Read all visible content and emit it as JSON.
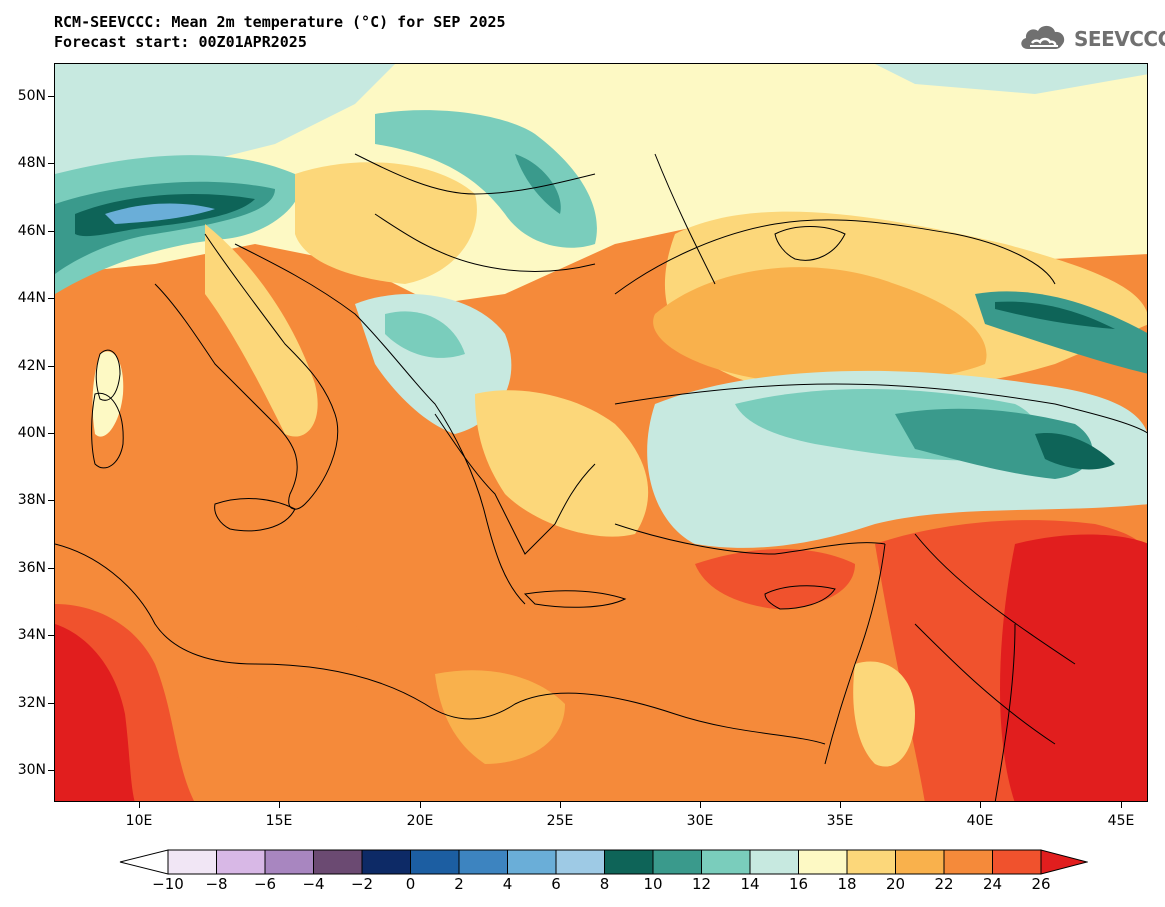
{
  "title": {
    "line1": "RCM-SEEVCCC: Mean 2m temperature (°C) for SEP 2025",
    "line2": "Forecast start: 00Z01APR2025"
  },
  "logo": {
    "text": "SEEVCCC",
    "icon": "cloud-icon",
    "color": "#707070"
  },
  "axes": {
    "lat_labels": [
      "50N",
      "48N",
      "46N",
      "44N",
      "42N",
      "40N",
      "38N",
      "36N",
      "34N",
      "32N",
      "30N"
    ],
    "lon_labels": [
      "10E",
      "15E",
      "20E",
      "25E",
      "30E",
      "35E",
      "40E",
      "45E"
    ],
    "lat_range": [
      29,
      51
    ],
    "lon_range": [
      7,
      46
    ]
  },
  "colorbar": {
    "labels": [
      "−10",
      "−8",
      "−6",
      "−4",
      "−2",
      "0",
      "2",
      "4",
      "6",
      "8",
      "10",
      "12",
      "14",
      "16",
      "18",
      "20",
      "22",
      "24",
      "26"
    ],
    "under_color": "#ffffff",
    "over_color": "#e11e1e",
    "colors": [
      "#f1e6f5",
      "#d8b8e6",
      "#a886c0",
      "#6b4a72",
      "#0d2a66",
      "#1c5ea2",
      "#3d84c0",
      "#6aaed8",
      "#9ecae5",
      "#0e6458",
      "#3a9a8c",
      "#7acdbc",
      "#c7e9e0",
      "#fdf9c4",
      "#fcd77a",
      "#f9b14c",
      "#f58a3a",
      "#f0522d"
    ]
  }
}
